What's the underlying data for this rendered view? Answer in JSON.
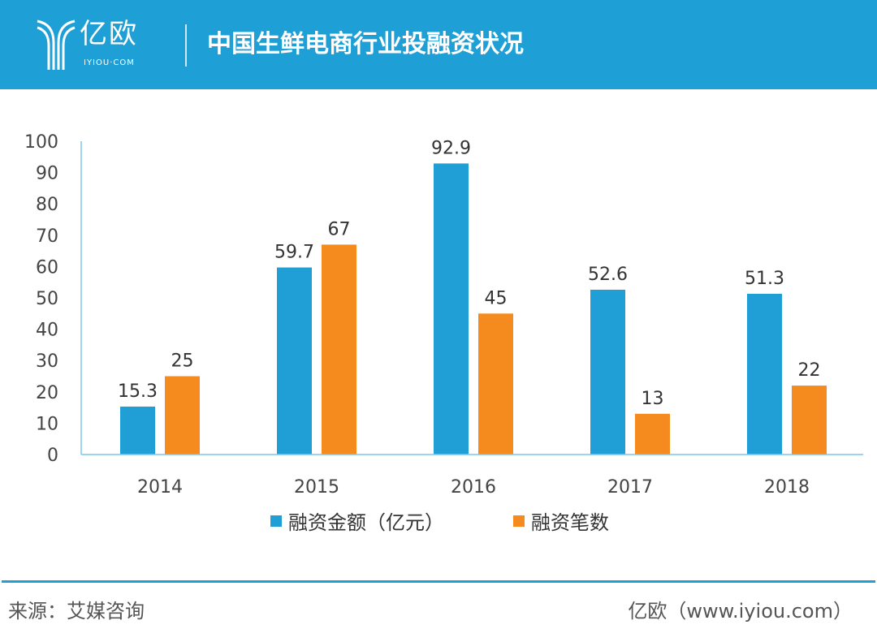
{
  "header": {
    "logo_text": "亿欧",
    "logo_sub": "IYIOU·COM",
    "title": "中国生鲜电商行业投融资状况"
  },
  "chart_data": {
    "type": "bar",
    "title": "中国生鲜电商行业投融资状况",
    "categories": [
      "2014",
      "2015",
      "2016",
      "2017",
      "2018"
    ],
    "series": [
      {
        "name": "融资金额（亿元）",
        "values": [
          15.3,
          59.7,
          92.9,
          52.6,
          51.3
        ],
        "color": "#1f9fd6"
      },
      {
        "name": "融资笔数",
        "values": [
          25,
          67,
          45,
          13,
          22
        ],
        "color": "#f58b1f"
      }
    ],
    "ylim": [
      0,
      100
    ],
    "yticks": [
      0,
      10,
      20,
      30,
      40,
      50,
      60,
      70,
      80,
      90,
      100
    ],
    "grid": false,
    "legend": "bottom"
  },
  "footer": {
    "source": "来源：艾媒咨询",
    "credit": "亿欧（www.iyiou.com）"
  }
}
